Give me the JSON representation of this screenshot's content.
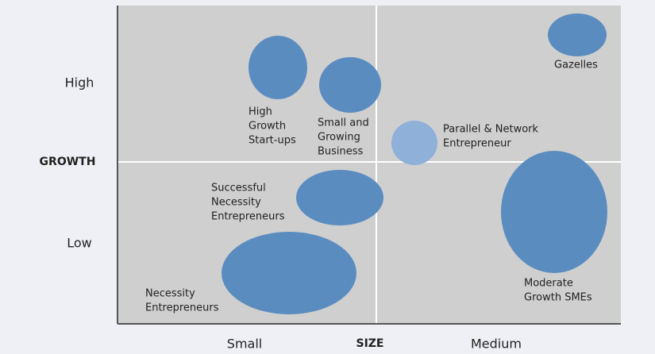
{
  "axes": {
    "y_title": "GROWTH",
    "y_high": "High",
    "y_low": "Low",
    "x_title": "SIZE",
    "x_small": "Small",
    "x_medium": "Medium"
  },
  "nodes": [
    {
      "lines": [
        "High",
        "Growth",
        "Start-ups"
      ]
    },
    {
      "lines": [
        "Small and",
        "Growing",
        "Business"
      ]
    },
    {
      "lines": [
        "Parallel & Network",
        "Entrepreneur"
      ]
    },
    {
      "lines": [
        "Gazelles"
      ]
    },
    {
      "lines": [
        "Successful",
        "Necessity",
        "Entrepreneurs"
      ]
    },
    {
      "lines": [
        "Necessity",
        "Entrepreneurs"
      ]
    },
    {
      "lines": [
        "Moderate",
        "Growth SMEs"
      ]
    }
  ]
}
